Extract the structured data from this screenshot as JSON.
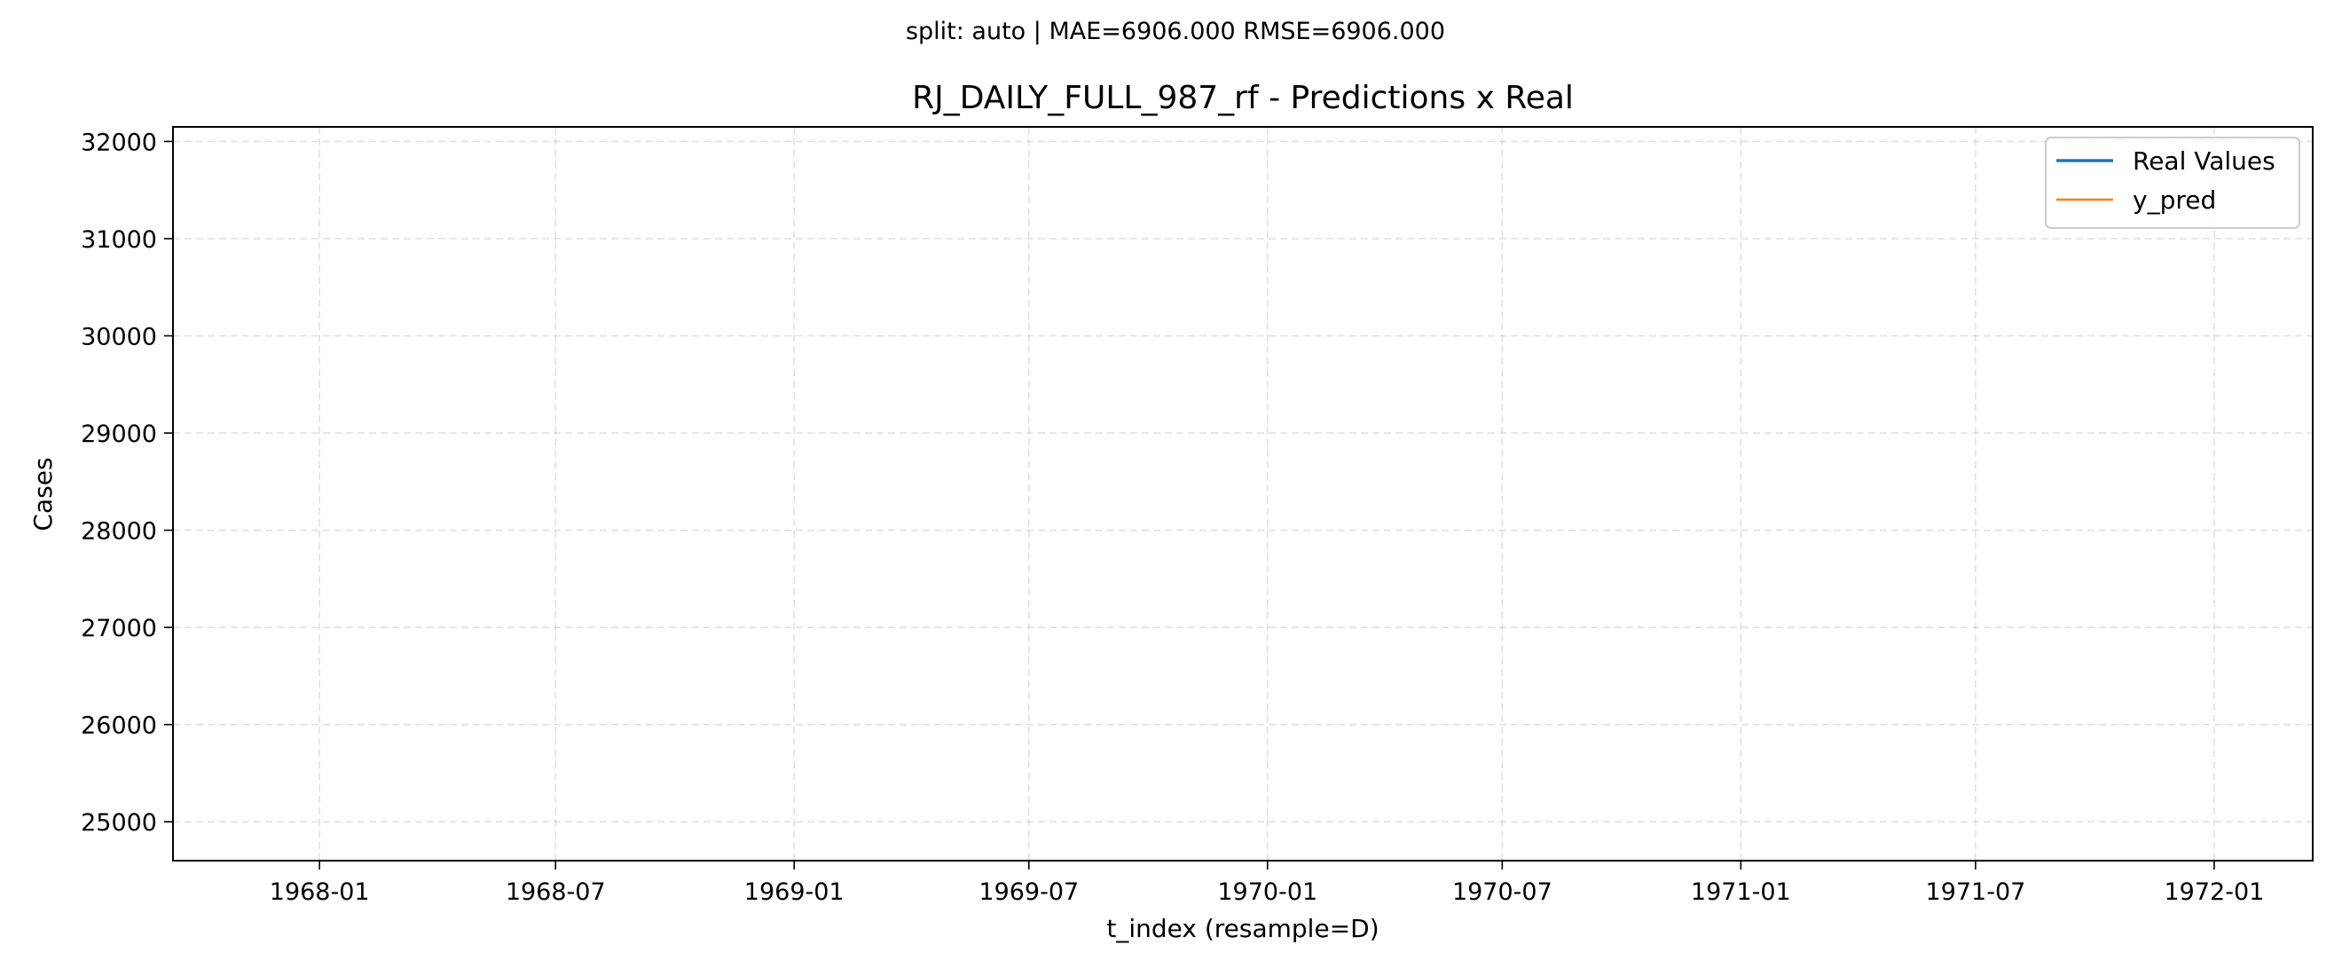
{
  "figure": {
    "suptitle": "split: auto | MAE=6906.000  RMSE=6906.000"
  },
  "chart_data": {
    "type": "line",
    "title": "RJ_DAILY_FULL_987_rf - Predictions x Real",
    "xlabel": "t_index (resample=D)",
    "ylabel": "Cases",
    "x_axis_type": "date",
    "xlim": [
      "1967-09-10",
      "1972-03-17"
    ],
    "ylim": [
      24600,
      32150
    ],
    "x_ticks": [
      "1968-01",
      "1968-07",
      "1969-01",
      "1969-07",
      "1970-01",
      "1970-07",
      "1971-01",
      "1971-07",
      "1972-01"
    ],
    "y_ticks": [
      25000,
      26000,
      27000,
      28000,
      29000,
      30000,
      31000,
      32000
    ],
    "grid": true,
    "legend_position": "top-right",
    "series": [
      {
        "name": "Real Values",
        "color": "#1f77b4",
        "x": [],
        "y": []
      },
      {
        "name": "y_pred",
        "color": "#ff7f0e",
        "x": [],
        "y": []
      }
    ]
  }
}
